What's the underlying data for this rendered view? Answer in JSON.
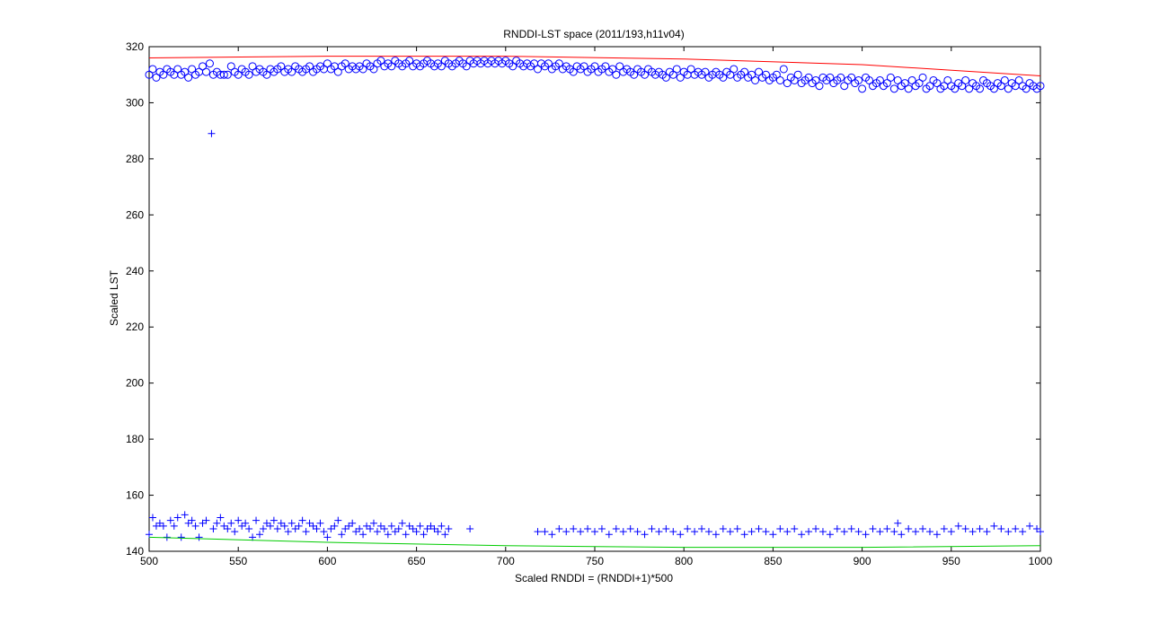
{
  "chart_data": {
    "type": "scatter",
    "title": "RNDDI-LST space (2011/193,h11v04)",
    "xlabel": "Scaled RNDDI = (RNDDI+1)*500",
    "ylabel": "Scaled LST",
    "xlim": [
      500,
      1000
    ],
    "ylim": [
      140,
      320
    ],
    "xticks": [
      500,
      550,
      600,
      650,
      700,
      750,
      800,
      850,
      900,
      950,
      1000
    ],
    "yticks": [
      140,
      160,
      180,
      200,
      220,
      240,
      260,
      280,
      300,
      320
    ],
    "grid": false,
    "legend": "none",
    "series": [
      {
        "marker": "circle",
        "color": "#0000ff",
        "description_values": "upper envelope candidates",
        "x": [
          500,
          502,
          504,
          506,
          508,
          510,
          512,
          514,
          516,
          518,
          520,
          522,
          524,
          526,
          528,
          530,
          532,
          534,
          536,
          538,
          540,
          542,
          544,
          546,
          548,
          550,
          552,
          554,
          556,
          558,
          560,
          562,
          564,
          566,
          568,
          570,
          572,
          574,
          576,
          578,
          580,
          582,
          584,
          586,
          588,
          590,
          592,
          594,
          596,
          598,
          600,
          602,
          604,
          606,
          608,
          610,
          612,
          614,
          616,
          618,
          620,
          622,
          624,
          626,
          628,
          630,
          632,
          634,
          636,
          638,
          640,
          642,
          644,
          646,
          648,
          650,
          652,
          654,
          656,
          658,
          660,
          662,
          664,
          666,
          668,
          670,
          672,
          674,
          676,
          678,
          680,
          682,
          684,
          686,
          688,
          690,
          692,
          694,
          696,
          698,
          700,
          702,
          704,
          706,
          708,
          710,
          712,
          714,
          716,
          718,
          720,
          722,
          724,
          726,
          728,
          730,
          732,
          734,
          736,
          738,
          740,
          742,
          744,
          746,
          748,
          750,
          752,
          754,
          756,
          758,
          760,
          762,
          764,
          766,
          768,
          770,
          772,
          774,
          776,
          778,
          780,
          782,
          784,
          786,
          788,
          790,
          792,
          794,
          796,
          798,
          800,
          802,
          804,
          806,
          808,
          810,
          812,
          814,
          816,
          818,
          820,
          822,
          824,
          826,
          828,
          830,
          832,
          834,
          836,
          838,
          840,
          842,
          844,
          846,
          848,
          850,
          852,
          854,
          856,
          858,
          860,
          862,
          864,
          866,
          868,
          870,
          872,
          874,
          876,
          878,
          880,
          882,
          884,
          886,
          888,
          890,
          892,
          894,
          896,
          898,
          900,
          902,
          904,
          906,
          908,
          910,
          912,
          914,
          916,
          918,
          920,
          922,
          924,
          926,
          928,
          930,
          932,
          934,
          936,
          938,
          940,
          942,
          944,
          946,
          948,
          950,
          952,
          954,
          956,
          958,
          960,
          962,
          964,
          966,
          968,
          970,
          972,
          974,
          976,
          978,
          980,
          982,
          984,
          986,
          988,
          990,
          992,
          994,
          996,
          998,
          1000
        ],
        "y": [
          310,
          312,
          309,
          311,
          310,
          312,
          311,
          310,
          312,
          310,
          311,
          309,
          312,
          310,
          311,
          313,
          311,
          314,
          310,
          311,
          310,
          310,
          310,
          313,
          311,
          310,
          312,
          311,
          310,
          313,
          311,
          312,
          311,
          310,
          312,
          311,
          312,
          313,
          311,
          312,
          311,
          313,
          312,
          311,
          312,
          313,
          311,
          312,
          313,
          312,
          314,
          312,
          313,
          311,
          313,
          314,
          312,
          313,
          312,
          313,
          312,
          314,
          313,
          312,
          314,
          315,
          313,
          314,
          313,
          315,
          314,
          313,
          314,
          315,
          313,
          314,
          313,
          314,
          315,
          314,
          313,
          314,
          313,
          315,
          314,
          313,
          314,
          315,
          314,
          313,
          315,
          314,
          315,
          314,
          315,
          314,
          315,
          314,
          315,
          314,
          315,
          314,
          313,
          315,
          314,
          313,
          314,
          313,
          314,
          312,
          314,
          313,
          314,
          312,
          313,
          314,
          312,
          313,
          312,
          311,
          313,
          312,
          313,
          311,
          312,
          313,
          311,
          312,
          313,
          311,
          312,
          310,
          313,
          311,
          312,
          311,
          310,
          312,
          311,
          310,
          312,
          311,
          310,
          311,
          310,
          309,
          311,
          310,
          312,
          309,
          311,
          310,
          312,
          310,
          311,
          310,
          311,
          309,
          310,
          311,
          310,
          309,
          311,
          310,
          312,
          309,
          310,
          311,
          309,
          310,
          308,
          311,
          309,
          310,
          308,
          309,
          310,
          308,
          312,
          307,
          309,
          308,
          310,
          307,
          308,
          309,
          307,
          308,
          306,
          309,
          308,
          309,
          307,
          308,
          309,
          306,
          308,
          309,
          307,
          308,
          305,
          309,
          308,
          306,
          307,
          308,
          306,
          307,
          309,
          305,
          308,
          306,
          307,
          305,
          308,
          306,
          307,
          309,
          305,
          306,
          308,
          307,
          305,
          306,
          308,
          306,
          305,
          307,
          306,
          308,
          305,
          307,
          306,
          305,
          308,
          307,
          306,
          305,
          307,
          306,
          308,
          305,
          307,
          306,
          308,
          306,
          305,
          307,
          306,
          305,
          306
        ]
      },
      {
        "marker": "plus",
        "color": "#0000ff",
        "description_values": "lower envelope candidates",
        "x": [
          500,
          502,
          504,
          506,
          508,
          510,
          512,
          514,
          516,
          518,
          520,
          522,
          524,
          526,
          528,
          530,
          532,
          535,
          536,
          538,
          540,
          542,
          544,
          546,
          548,
          550,
          552,
          554,
          556,
          558,
          560,
          562,
          564,
          566,
          568,
          570,
          572,
          574,
          576,
          578,
          580,
          582,
          584,
          586,
          588,
          590,
          592,
          594,
          596,
          598,
          600,
          602,
          604,
          606,
          608,
          610,
          612,
          614,
          616,
          618,
          620,
          622,
          624,
          626,
          628,
          630,
          632,
          634,
          636,
          638,
          640,
          642,
          644,
          646,
          648,
          650,
          652,
          654,
          656,
          658,
          660,
          662,
          664,
          666,
          668,
          680,
          718,
          722,
          726,
          730,
          734,
          738,
          742,
          746,
          750,
          754,
          758,
          762,
          766,
          770,
          774,
          778,
          782,
          786,
          790,
          794,
          798,
          802,
          806,
          810,
          814,
          818,
          822,
          826,
          830,
          834,
          838,
          842,
          846,
          850,
          854,
          858,
          862,
          866,
          870,
          874,
          878,
          882,
          886,
          890,
          894,
          898,
          902,
          906,
          910,
          914,
          918,
          920,
          922,
          926,
          930,
          934,
          938,
          942,
          946,
          950,
          954,
          958,
          962,
          966,
          970,
          974,
          978,
          982,
          986,
          990,
          994,
          998,
          1000
        ],
        "y": [
          146,
          152,
          149,
          150,
          149,
          145,
          151,
          149,
          152,
          145,
          153,
          150,
          151,
          149,
          145,
          150,
          151,
          289,
          148,
          150,
          152,
          149,
          148,
          150,
          147,
          151,
          149,
          150,
          148,
          145,
          151,
          146,
          148,
          150,
          149,
          151,
          148,
          150,
          149,
          147,
          150,
          148,
          149,
          151,
          147,
          150,
          149,
          148,
          150,
          147,
          145,
          148,
          149,
          151,
          146,
          148,
          149,
          150,
          147,
          148,
          146,
          149,
          148,
          150,
          147,
          149,
          148,
          146,
          149,
          147,
          148,
          150,
          146,
          149,
          148,
          147,
          149,
          146,
          148,
          149,
          148,
          147,
          149,
          146,
          148,
          148,
          147,
          147,
          146,
          148,
          147,
          148,
          147,
          148,
          147,
          148,
          146,
          148,
          147,
          148,
          147,
          146,
          148,
          147,
          148,
          147,
          146,
          148,
          147,
          148,
          147,
          146,
          148,
          147,
          148,
          146,
          147,
          148,
          147,
          146,
          148,
          147,
          148,
          146,
          147,
          148,
          147,
          146,
          148,
          147,
          148,
          147,
          146,
          148,
          147,
          148,
          147,
          150,
          146,
          148,
          147,
          148,
          147,
          146,
          148,
          147,
          149,
          148,
          147,
          148,
          147,
          149,
          148,
          147,
          148,
          147,
          149,
          148,
          147
        ]
      },
      {
        "type": "line",
        "color": "#ff0000",
        "description_values": "fitted upper boundary",
        "x": [
          500,
          600,
          700,
          800,
          900,
          1000
        ],
        "y": [
          316,
          316.6,
          316.6,
          315.6,
          313.6,
          309.6
        ]
      },
      {
        "type": "line",
        "color": "#00cc00",
        "description_values": "fitted lower boundary",
        "x": [
          500,
          600,
          700,
          800,
          900,
          1000
        ],
        "y": [
          145,
          143.2,
          142,
          141.4,
          141.4,
          142
        ]
      }
    ]
  }
}
